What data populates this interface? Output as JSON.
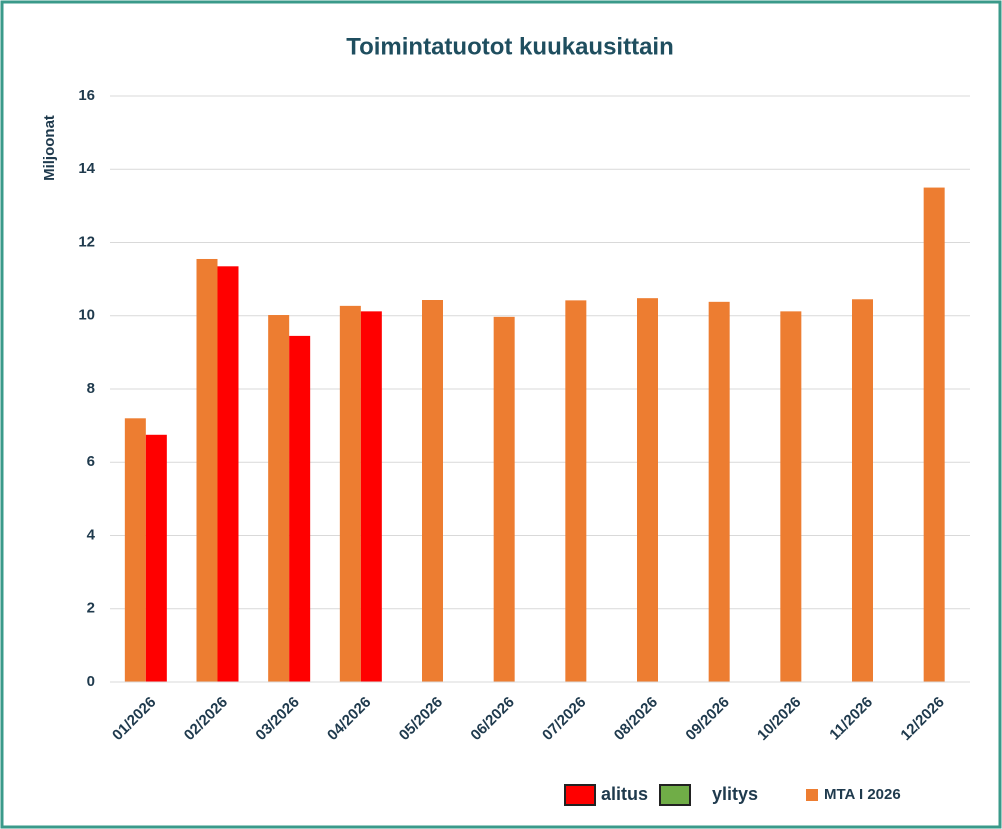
{
  "chart_data": {
    "type": "bar",
    "title": "Toimintatuotot kuukausittain",
    "y_label": "Miljoonat",
    "categories": [
      "01/2026",
      "02/2026",
      "03/2026",
      "04/2026",
      "05/2026",
      "06/2026",
      "07/2026",
      "08/2026",
      "09/2026",
      "10/2026",
      "11/2026",
      "12/2026"
    ],
    "series": [
      {
        "name": "MTA I 2026",
        "color": "#ed7d31",
        "values": [
          7.2,
          11.55,
          10.02,
          10.27,
          10.43,
          9.97,
          10.42,
          10.48,
          10.38,
          10.12,
          10.45,
          13.5
        ]
      },
      {
        "name": "alitus",
        "color": "#ff0000",
        "values": [
          6.75,
          11.35,
          9.45,
          10.12,
          null,
          null,
          null,
          null,
          null,
          null,
          null,
          null
        ]
      },
      {
        "name": "ylitys",
        "color": "#70ad47",
        "values": [
          null,
          null,
          null,
          null,
          null,
          null,
          null,
          null,
          null,
          null,
          null,
          null
        ]
      }
    ],
    "ylim": [
      0,
      16
    ],
    "yticks": [
      0,
      2,
      4,
      6,
      8,
      10,
      12,
      14,
      16
    ],
    "grid": true
  }
}
